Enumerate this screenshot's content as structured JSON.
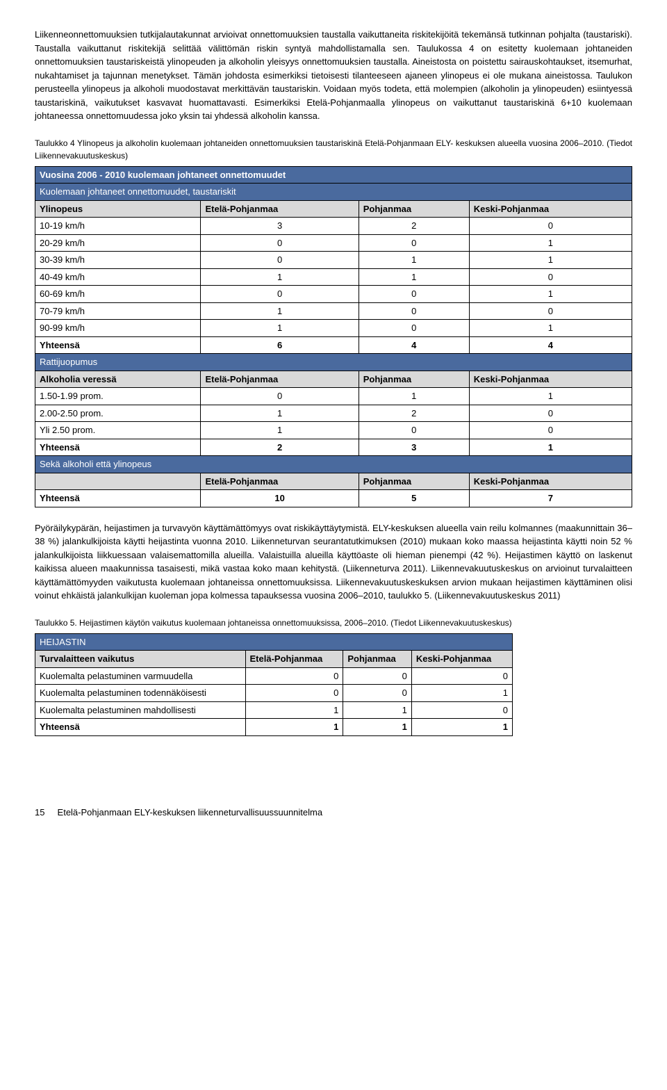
{
  "paragraphs": {
    "p1": "Liikenneonnettomuuksien tutkijalautakunnat arvioivat onnettomuuksien taustalla vaikuttaneita riskitekijöitä tekemänsä tutkinnan pohjalta (taustariski). Taustalla vaikuttanut riskitekijä selittää välittömän riskin syntyä mahdollistamalla sen. Taulukossa 4 on esitetty kuolemaan johtaneiden onnettomuuksien taustariskeistä ylinopeuden ja alkoholin yleisyys onnettomuuksien taustalla. Aineistosta on poistettu sairauskohtaukset, itsemurhat, nukahtamiset ja tajunnan menetykset. Tämän johdosta esimerkiksi tietoisesti tilanteeseen ajaneen ylinopeus ei ole mukana aineistossa. Taulukon perusteella ylinopeus ja alkoholi muodostavat merkittävän taustariskin. Voidaan myös todeta, että molempien (alkoholin ja ylinopeuden) esiintyessä taustariskinä, vaikutukset kasvavat huomattavasti. Esimerkiksi Etelä-Pohjanmaalla ylinopeus on vaikuttanut taustariskinä 6+10 kuolemaan johtaneessa onnettomuudessa joko yksin tai yhdessä alkoholin kanssa.",
    "p2": "Pyöräilykypärän, heijastimen ja turvavyön käyttämättömyys ovat riskikäyttäytymistä. ELY-keskuksen alueella vain reilu kolmannes (maakunnittain 36–38 %) jalankulkijoista käytti heijastinta vuonna 2010. Liikenneturvan seurantatutkimuksen (2010) mukaan koko maassa heijastinta käytti noin 52 % jalankulkijoista liikkuessaan valaisemattomilla alueilla. Valaistuilla alueilla käyttöaste oli hieman pienempi (42 %). Heijastimen käyttö on laskenut kaikissa alueen maakunnissa tasaisesti, mikä vastaa koko maan kehitystä. (Liikenneturva 2011). Liikennevakuutuskeskus on arvioinut turvalaitteen käyttämättömyyden vaikutusta kuolemaan johtaneissa onnettomuuksissa. Liikennevakuutuskeskuksen arvion mukaan heijastimen käyttäminen olisi voinut ehkäistä jalankulkijan kuoleman jopa kolmessa tapauksessa vuosina 2006–2010, taulukko 5. (Liikennevakuutuskeskus 2011)"
  },
  "captions": {
    "c1": "Taulukko 4 Ylinopeus ja alkoholin kuolemaan johtaneiden onnettomuuksien taustariskinä Etelä-Pohjanmaan ELY- keskuksen alueella vuosina 2006–2010. (Tiedot Liikennevakuutuskeskus)",
    "c2": "Taulukko 5. Heijastimen käytön vaikutus kuolemaan johtaneissa onnettomuuksissa, 2006–2010. (Tiedot Liikennevakuutuskeskus)"
  },
  "table1": {
    "title": "Vuosina 2006 - 2010 kuolemaan johtaneet onnettomuudet",
    "subtitle": "Kuolemaan johtaneet onnettomuudet, taustariskit",
    "col_labels": {
      "c0": "Ylinopeus",
      "c1": "Etelä-Pohjanmaa",
      "c2": "Pohjanmaa",
      "c3": "Keski-Pohjanmaa"
    },
    "speed_rows": [
      {
        "label": "10-19 km/h",
        "v1": "3",
        "v2": "2",
        "v3": "0"
      },
      {
        "label": "20-29 km/h",
        "v1": "0",
        "v2": "0",
        "v3": "1"
      },
      {
        "label": "30-39 km/h",
        "v1": "0",
        "v2": "1",
        "v3": "1"
      },
      {
        "label": "40-49 km/h",
        "v1": "1",
        "v2": "1",
        "v3": "0"
      },
      {
        "label": "60-69 km/h",
        "v1": "0",
        "v2": "0",
        "v3": "1"
      },
      {
        "label": "70-79 km/h",
        "v1": "1",
        "v2": "0",
        "v3": "0"
      },
      {
        "label": "90-99 km/h",
        "v1": "1",
        "v2": "0",
        "v3": "1"
      }
    ],
    "speed_total": {
      "label": "Yhteensä",
      "v1": "6",
      "v2": "4",
      "v3": "4"
    },
    "ratti_header": "Rattijuopumus",
    "alc_cols": {
      "c0": "Alkoholia veressä",
      "c1": "Etelä-Pohjanmaa",
      "c2": "Pohjanmaa",
      "c3": "Keski-Pohjanmaa"
    },
    "alc_rows": [
      {
        "label": "1.50-1.99 prom.",
        "v1": "0",
        "v2": "1",
        "v3": "1"
      },
      {
        "label": "2.00-2.50 prom.",
        "v1": "1",
        "v2": "2",
        "v3": "0"
      },
      {
        "label": "Yli 2.50 prom.",
        "v1": "1",
        "v2": "0",
        "v3": "0"
      }
    ],
    "alc_total": {
      "label": "Yhteensä",
      "v1": "2",
      "v2": "3",
      "v3": "1"
    },
    "both_header": "Sekä alkoholi että ylinopeus",
    "both_cols": {
      "c1": "Etelä-Pohjanmaa",
      "c2": "Pohjanmaa",
      "c3": "Keski-Pohjanmaa"
    },
    "grand_total": {
      "label": "Yhteensä",
      "v1": "10",
      "v2": "5",
      "v3": "7"
    }
  },
  "table2": {
    "title": "HEIJASTIN",
    "cols": {
      "c0": "Turvalaitteen vaikutus",
      "c1": "Etelä-Pohjanmaa",
      "c2": "Pohjanmaa",
      "c3": "Keski-Pohjanmaa"
    },
    "rows": [
      {
        "label": "Kuolemalta pelastuminen varmuudella",
        "v1": "0",
        "v2": "0",
        "v3": "0"
      },
      {
        "label": "Kuolemalta pelastuminen todennäköisesti",
        "v1": "0",
        "v2": "0",
        "v3": "1"
      },
      {
        "label": "Kuolemalta pelastuminen mahdollisesti",
        "v1": "1",
        "v2": "1",
        "v3": "0"
      }
    ],
    "total": {
      "label": "Yhteensä",
      "v1": "1",
      "v2": "1",
      "v3": "1"
    }
  },
  "footer": {
    "page": "15",
    "text": "Etelä-Pohjanmaan ELY-keskuksen liikenneturvallisuussuunnitelma"
  }
}
